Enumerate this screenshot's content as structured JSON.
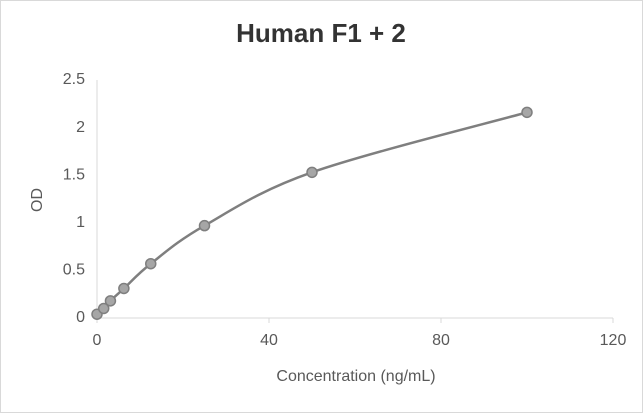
{
  "chart_data": {
    "type": "scatter",
    "title": "Human F1 + 2",
    "x_label": "Concentration (ng/mL)",
    "y_label": "OD",
    "series": [
      {
        "color": "#7f7f7f",
        "x": [
          0,
          1.5625,
          3.125,
          6.25,
          12.5,
          25,
          50,
          100
        ],
        "values": [
          0.04,
          0.1,
          0.18,
          0.31,
          0.57,
          0.97,
          1.53,
          2.16
        ]
      }
    ],
    "smooth": true,
    "xlim": [
      0,
      120
    ],
    "xticks": [
      0,
      40,
      80,
      120
    ],
    "ylim": [
      0,
      2.5
    ],
    "yticks": [
      0,
      0.5,
      1,
      1.5,
      2,
      2.5
    ],
    "grid": false
  }
}
